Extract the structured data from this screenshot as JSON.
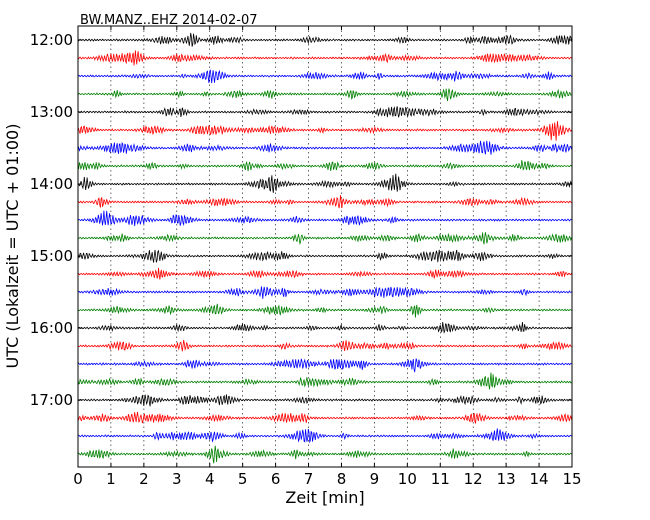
{
  "chart_data": {
    "type": "line",
    "title": "BW.MANZ..EHZ 2014-02-07",
    "xlabel": "Zeit  [min]",
    "ylabel": "UTC (Lokalzeit = UTC + 01:00)",
    "xlim": [
      0,
      15
    ],
    "x_ticks": [
      "0",
      "1",
      "2",
      "3",
      "4",
      "5",
      "6",
      "7",
      "8",
      "9",
      "10",
      "11",
      "12",
      "13",
      "14",
      "15"
    ],
    "y_ticks": [
      "12:00",
      "13:00",
      "14:00",
      "15:00",
      "16:00",
      "17:00"
    ],
    "grid": "vertical dotted lines at each minute",
    "trace_colors": [
      "#000000",
      "#ff0000",
      "#0000ff",
      "#008000"
    ],
    "trace_interval_minutes": 15,
    "trace_count": 24
  }
}
